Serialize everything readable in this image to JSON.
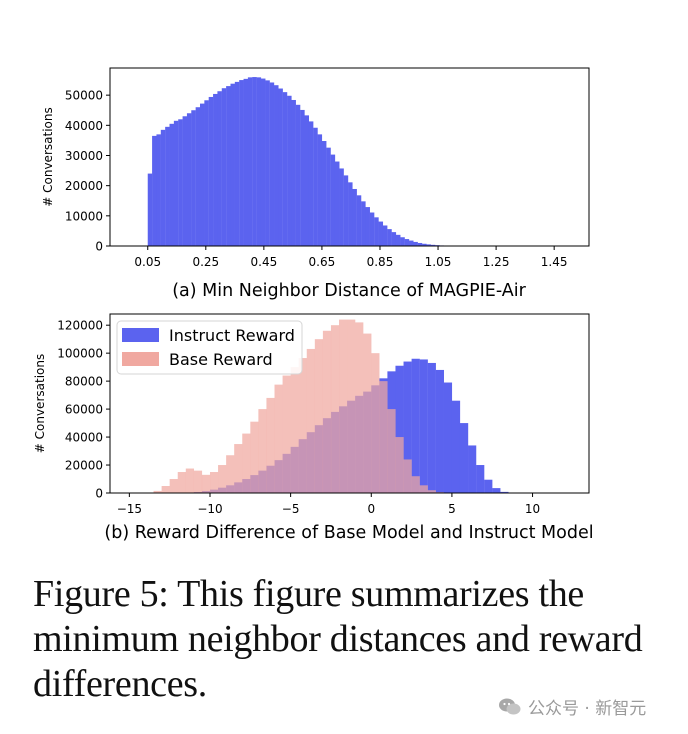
{
  "figure": {
    "caption": "Figure 5: This figure summarizes the minimum neighbor distances and reward differences.",
    "watermark": "公众号 · 新智元"
  },
  "chart_data": [
    {
      "type": "bar",
      "title": "(a) Min Neighbor Distance of MAGPIE-Air",
      "xlabel": "",
      "ylabel": "# Conversations",
      "xlim": [
        -0.08,
        1.57
      ],
      "ylim": [
        0,
        59000
      ],
      "xticks": [
        0.05,
        0.25,
        0.45,
        0.65,
        0.85,
        1.05,
        1.25,
        1.45
      ],
      "xtick_labels": [
        "0.05",
        "0.25",
        "0.45",
        "0.65",
        "0.85",
        "1.05",
        "1.25",
        "1.45"
      ],
      "yticks": [
        0,
        10000,
        20000,
        30000,
        40000,
        50000
      ],
      "ytick_labels": [
        "0",
        "10000",
        "20000",
        "30000",
        "40000",
        "50000"
      ],
      "bin_width": 0.015,
      "series": [
        {
          "color": "#5b63ef",
          "bin_starts": [
            0.05,
            0.065,
            0.08,
            0.095,
            0.11,
            0.125,
            0.14,
            0.155,
            0.17,
            0.185,
            0.2,
            0.215,
            0.23,
            0.245,
            0.26,
            0.275,
            0.29,
            0.305,
            0.32,
            0.335,
            0.35,
            0.365,
            0.38,
            0.395,
            0.41,
            0.425,
            0.44,
            0.455,
            0.47,
            0.485,
            0.5,
            0.515,
            0.53,
            0.545,
            0.56,
            0.575,
            0.59,
            0.605,
            0.62,
            0.635,
            0.65,
            0.665,
            0.68,
            0.695,
            0.71,
            0.725,
            0.74,
            0.755,
            0.77,
            0.785,
            0.8,
            0.815,
            0.83,
            0.845,
            0.86,
            0.875,
            0.89,
            0.905,
            0.92,
            0.935,
            0.95,
            0.965,
            0.98,
            0.995,
            1.01,
            1.025,
            1.04,
            1.055,
            1.07,
            1.085,
            1.1,
            1.115,
            1.13,
            1.145,
            1.16
          ],
          "values": [
            24000,
            36500,
            37000,
            38500,
            39500,
            40500,
            41500,
            42000,
            43000,
            44000,
            45000,
            46000,
            47200,
            48300,
            49400,
            50400,
            51300,
            52300,
            53000,
            53800,
            54400,
            55000,
            55400,
            55900,
            56000,
            55900,
            55500,
            54900,
            54200,
            53300,
            52200,
            51000,
            49800,
            48400,
            46800,
            45100,
            43300,
            41300,
            39200,
            37000,
            34800,
            32600,
            30300,
            28000,
            25700,
            23400,
            21100,
            18900,
            16800,
            14800,
            12900,
            11100,
            9500,
            8100,
            6800,
            5600,
            4600,
            3700,
            2900,
            2300,
            1800,
            1350,
            1000,
            740,
            540,
            390,
            280,
            190,
            130,
            90,
            60,
            40,
            25,
            15,
            8
          ]
        }
      ],
      "grid": false
    },
    {
      "type": "bar",
      "title": "(b) Reward Difference of Base Model and Instruct Model",
      "xlabel": "",
      "ylabel": "# Conversations",
      "xlim": [
        -16.2,
        13.5
      ],
      "ylim": [
        0,
        128000
      ],
      "xticks": [
        -15,
        -10,
        -5,
        0,
        5,
        10
      ],
      "xtick_labels": [
        "−15",
        "−10",
        "−5",
        "0",
        "5",
        "10"
      ],
      "yticks": [
        0,
        20000,
        40000,
        60000,
        80000,
        100000,
        120000
      ],
      "ytick_labels": [
        "0",
        "20000",
        "40000",
        "60000",
        "80000",
        "100000",
        "120000"
      ],
      "bin_width": 0.5,
      "legend_position": "top-left",
      "series": [
        {
          "name": "Instruct Reward",
          "color": "#5b63ef",
          "bin_starts": [
            -12.0,
            -11.5,
            -11.0,
            -10.5,
            -10.0,
            -9.5,
            -9.0,
            -8.5,
            -8.0,
            -7.5,
            -7.0,
            -6.5,
            -6.0,
            -5.5,
            -5.0,
            -4.5,
            -4.0,
            -3.5,
            -3.0,
            -2.5,
            -2.0,
            -1.5,
            -1.0,
            -0.5,
            0.0,
            0.5,
            1.0,
            1.5,
            2.0,
            2.5,
            3.0,
            3.5,
            4.0,
            4.5,
            5.0,
            5.5,
            6.0,
            6.5,
            7.0,
            7.5,
            8.0
          ],
          "values": [
            100,
            300,
            700,
            1400,
            2400,
            3800,
            5500,
            7600,
            10000,
            12800,
            16000,
            19500,
            23500,
            28000,
            33000,
            38500,
            43500,
            48500,
            53500,
            58000,
            62000,
            66000,
            69500,
            72500,
            77000,
            82000,
            87000,
            91000,
            94000,
            96000,
            95500,
            93000,
            88000,
            79000,
            66000,
            50000,
            34000,
            20000,
            9500,
            3500,
            800
          ]
        },
        {
          "name": "Base Reward",
          "color": "#f0a8a0",
          "bin_starts": [
            -13.5,
            -13.0,
            -12.5,
            -12.0,
            -11.5,
            -11.0,
            -10.5,
            -10.0,
            -9.5,
            -9.0,
            -8.5,
            -8.0,
            -7.5,
            -7.0,
            -6.5,
            -6.0,
            -5.5,
            -5.0,
            -4.5,
            -4.0,
            -3.5,
            -3.0,
            -2.5,
            -2.0,
            -1.5,
            -1.0,
            -0.5,
            0.0,
            0.5,
            1.0,
            1.5,
            2.0,
            2.5,
            3.0,
            3.5,
            4.0,
            4.5
          ],
          "values": [
            1500,
            5000,
            10000,
            15000,
            17500,
            16000,
            13000,
            15000,
            20000,
            27000,
            35000,
            42500,
            51000,
            60000,
            68000,
            77500,
            84000,
            90000,
            96500,
            103000,
            110000,
            116000,
            120000,
            124000,
            124000,
            122000,
            114000,
            100000,
            80000,
            60000,
            40000,
            24000,
            12000,
            5500,
            2000,
            600,
            150
          ]
        }
      ],
      "grid": false
    }
  ]
}
